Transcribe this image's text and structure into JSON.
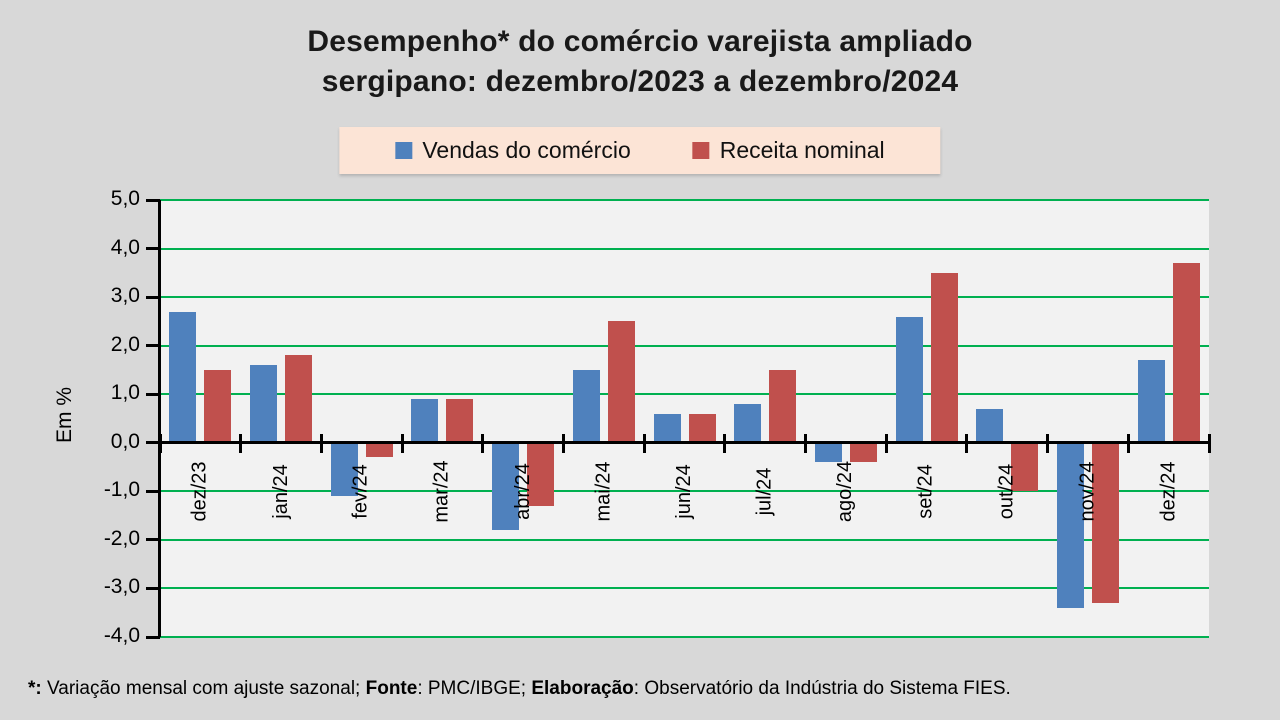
{
  "title": {
    "line1": "Desempenho* do comércio varejista ampliado",
    "line2": "sergipano: dezembro/2023 a dezembro/2024"
  },
  "chart_data": {
    "type": "bar",
    "title": "Desempenho* do comércio varejista ampliado sergipano: dezembro/2023 a dezembro/2024",
    "categories": [
      "dez/23",
      "jan/24",
      "fev/24",
      "mar/24",
      "abr/24",
      "mai/24",
      "jun/24",
      "jul/24",
      "ago/24",
      "set/24",
      "out/24",
      "nov/24",
      "dez/24"
    ],
    "series": [
      {
        "name": "Vendas do comércio",
        "color": "#4F81BD",
        "values": [
          2.7,
          1.6,
          -1.1,
          0.9,
          -1.8,
          1.5,
          0.6,
          0.8,
          -0.4,
          2.6,
          0.7,
          -3.4,
          1.7
        ]
      },
      {
        "name": "Receita nominal",
        "color": "#C0504D",
        "values": [
          1.5,
          1.8,
          -0.3,
          0.9,
          -1.3,
          2.5,
          0.6,
          1.5,
          -0.4,
          3.5,
          -1.0,
          -3.3,
          3.7
        ]
      }
    ],
    "xlabel": "",
    "ylabel": "Em %",
    "ylim": [
      -4,
      5
    ],
    "yticks": [
      {
        "value": 5,
        "label": "5,0"
      },
      {
        "value": 4,
        "label": "4,0"
      },
      {
        "value": 3,
        "label": "3,0"
      },
      {
        "value": 2,
        "label": "2,0"
      },
      {
        "value": 1,
        "label": "1,0"
      },
      {
        "value": 0,
        "label": "0,0"
      },
      {
        "value": -1,
        "label": "-1,0"
      },
      {
        "value": -2,
        "label": "-2,0"
      },
      {
        "value": -3,
        "label": "-3,0"
      },
      {
        "value": -4,
        "label": "-4,0"
      }
    ],
    "grid": true,
    "gridline_color": "#00B050",
    "legend_position": "top",
    "plot_background": "#F2F2F2",
    "page_background": "#D8D8D8",
    "legend_background": "#FCE4D6"
  },
  "footer": {
    "segments": [
      {
        "text": "*:",
        "bold": true
      },
      {
        "text": " Variação mensal com ajuste sazonal; ",
        "bold": false
      },
      {
        "text": "Fonte",
        "bold": true
      },
      {
        "text": ": PMC/IBGE; ",
        "bold": false
      },
      {
        "text": "Elaboração",
        "bold": true
      },
      {
        "text": ": Observatório da Indústria do Sistema FIES.",
        "bold": false
      }
    ]
  }
}
